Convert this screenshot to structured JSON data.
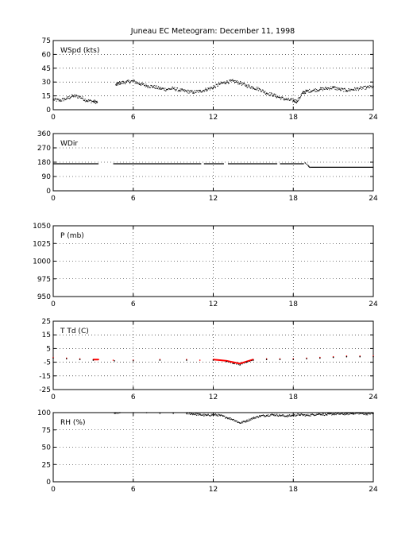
{
  "title": "Juneau EC Meteogram:  December 11, 1998",
  "chart_data": [
    {
      "type": "scatter",
      "label": "WSpd (kts)",
      "xlim": [
        0,
        24
      ],
      "ylim": [
        0,
        75
      ],
      "x_ticks": [
        0,
        6,
        12,
        18,
        24
      ],
      "y_ticks": [
        0,
        15,
        30,
        45,
        60,
        75
      ],
      "grid": true,
      "series": [
        {
          "color": "#000000",
          "x": [
            0.0,
            0.5,
            1.0,
            1.5,
            2.0,
            2.5,
            3.0,
            3.3,
            4.7,
            5.0,
            5.5,
            6.0,
            6.5,
            7.0,
            7.5,
            8.0,
            8.5,
            9.0,
            9.5,
            10.0,
            10.5,
            11.0,
            11.5,
            12.0,
            12.5,
            13.0,
            13.5,
            14.0,
            14.5,
            15.0,
            15.5,
            16.0,
            16.5,
            17.0,
            17.5,
            18.0,
            18.3,
            18.7,
            19.0,
            19.5,
            20.0,
            20.5,
            21.0,
            21.5,
            22.0,
            22.5,
            23.0,
            23.5,
            24.0
          ],
          "y": [
            11,
            10,
            12,
            15,
            14,
            10,
            9,
            8,
            27,
            29,
            30,
            31,
            28,
            26,
            25,
            23,
            22,
            23,
            21,
            20,
            19,
            20,
            22,
            24,
            28,
            30,
            31,
            29,
            26,
            24,
            22,
            18,
            16,
            13,
            11,
            10,
            9,
            18,
            20,
            21,
            22,
            23,
            24,
            22,
            21,
            22,
            23,
            24,
            25
          ]
        }
      ]
    },
    {
      "type": "scatter",
      "label": "WDir",
      "xlim": [
        0,
        24
      ],
      "ylim": [
        0,
        360
      ],
      "x_ticks": [
        0,
        6,
        12,
        18,
        24
      ],
      "y_ticks": [
        0,
        90,
        180,
        270,
        360
      ],
      "grid": true,
      "segments": [
        {
          "x": [
            0,
            3.4
          ],
          "y": [
            170,
            170
          ]
        },
        {
          "x": [
            4.5,
            11.1
          ],
          "y": [
            170,
            170
          ]
        },
        {
          "x": [
            11.3,
            12.8
          ],
          "y": [
            170,
            170
          ]
        },
        {
          "x": [
            13.1,
            16.8
          ],
          "y": [
            170,
            170
          ]
        },
        {
          "x": [
            17.0,
            18.8
          ],
          "y": [
            170,
            170
          ]
        },
        {
          "x": [
            19.3,
            24
          ],
          "y": [
            148,
            148
          ]
        }
      ],
      "series": [
        {
          "color": "#000000",
          "x": [
            18.9,
            19.0,
            19.1,
            19.15,
            19.2,
            19.25
          ],
          "y": [
            175,
            168,
            160,
            155,
            150,
            148
          ]
        }
      ]
    },
    {
      "type": "line",
      "label": "P (mb)",
      "xlim": [
        0,
        24
      ],
      "ylim": [
        950,
        1050
      ],
      "x_ticks": [
        0,
        6,
        12,
        18,
        24
      ],
      "y_ticks": [
        950,
        975,
        1000,
        1025,
        1050
      ],
      "grid": true,
      "series": []
    },
    {
      "type": "line",
      "label": "T Td (C)",
      "xlim": [
        0,
        24
      ],
      "ylim": [
        -25,
        25
      ],
      "x_ticks": [
        0,
        6,
        12,
        18,
        24
      ],
      "y_ticks": [
        -25,
        -15,
        -5,
        5,
        15,
        25
      ],
      "grid": true,
      "series": [
        {
          "color": "#ff0000",
          "x": [
            0,
            1,
            2,
            3,
            3.4,
            4.5,
            6,
            8,
            10,
            11,
            12,
            12.5,
            13,
            13.5,
            14,
            14.5,
            15,
            16,
            17,
            18,
            19,
            20,
            21,
            22,
            23,
            24
          ],
          "y": [
            -1.5,
            -2,
            -2.5,
            -3,
            -3,
            -3.5,
            -3.5,
            -3,
            -3,
            -3.5,
            -3,
            -3.5,
            -4,
            -5,
            -6,
            -4.5,
            -3,
            -2.5,
            -2.5,
            -2.5,
            -2,
            -1.5,
            -1,
            -0.5,
            -0.5,
            -0.5
          ]
        },
        {
          "color": "#000000",
          "x": [
            0,
            1,
            2,
            3,
            4.6,
            6,
            8,
            10,
            12,
            13,
            13.5,
            14,
            14.5,
            15,
            16,
            17,
            18,
            19,
            20,
            21,
            22,
            23,
            24
          ],
          "y": [
            -2,
            -2.5,
            -3,
            -3.5,
            -4,
            -4,
            -3.5,
            -3.5,
            -3.5,
            -4.5,
            -6,
            -7,
            -5,
            -3.5,
            -3,
            -3,
            -3,
            -2.5,
            -2,
            -1.5,
            -1,
            -1,
            -1
          ]
        }
      ]
    },
    {
      "type": "scatter",
      "label": "RH (%)",
      "xlim": [
        0,
        24
      ],
      "ylim": [
        0,
        100
      ],
      "x_ticks": [
        0,
        6,
        12,
        18,
        24
      ],
      "y_ticks": [
        0,
        25,
        50,
        75,
        100
      ],
      "grid": true,
      "series": [
        {
          "color": "#000000",
          "x": [
            4.6,
            5,
            6,
            7,
            8,
            9,
            10,
            10.5,
            11,
            11.5,
            12,
            12.5,
            13,
            13.5,
            14,
            14.5,
            15,
            15.5,
            16,
            16.5,
            17,
            17.5,
            18,
            18.5,
            19,
            19.5,
            20,
            20.5,
            21,
            21.5,
            22,
            22.5,
            23,
            23.5,
            24
          ],
          "y": [
            99,
            100,
            100,
            100,
            99,
            99,
            99,
            98,
            97,
            96,
            97,
            96,
            93,
            90,
            85,
            88,
            92,
            95,
            96,
            97,
            96,
            95,
            96,
            97,
            96,
            97,
            98,
            97,
            98,
            98,
            98,
            99,
            99,
            98,
            99
          ]
        }
      ]
    }
  ]
}
